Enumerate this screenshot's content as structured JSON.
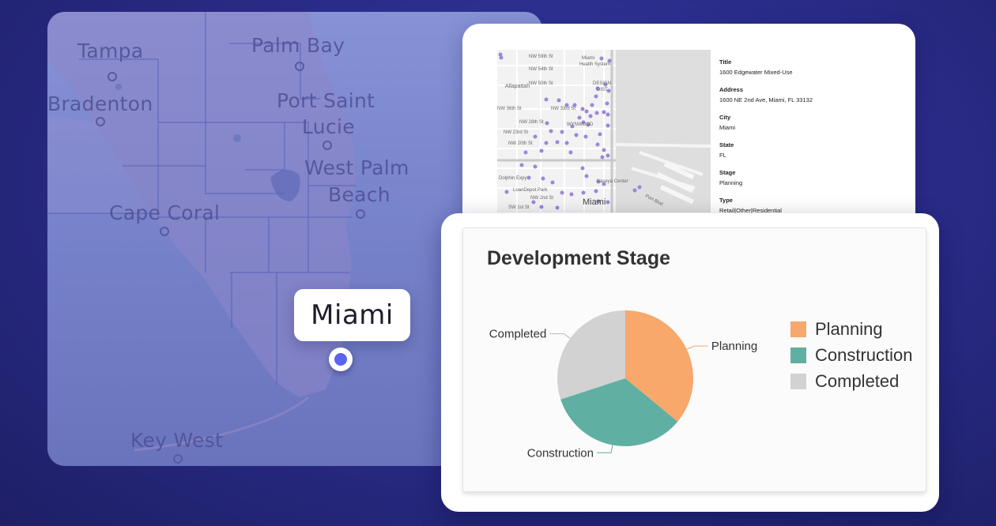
{
  "map": {
    "cities": [
      {
        "name": "Tampa"
      },
      {
        "name": "Palm Bay"
      },
      {
        "name": "Bradenton"
      },
      {
        "name": "Port Saint"
      },
      {
        "name": "Lucie"
      },
      {
        "name": "West Palm"
      },
      {
        "name": "Beach"
      },
      {
        "name": "Cape Coral"
      },
      {
        "name": "Key West"
      }
    ],
    "selected_city": "Miami",
    "marker_color": "#5b63f0"
  },
  "street_map": {
    "labels": [
      "NW 59th St",
      "NW 54th St",
      "NW 50th St",
      "Miami",
      "Health System",
      "Allapattah",
      "DESIGN",
      "DIST",
      "NW 36th St",
      "NW 33rd St",
      "NW 28th St",
      "NW 23rd St",
      "NW 20th St",
      "WYNWOOD",
      "Dolphin Expy",
      "LoanDepot Park",
      "Kaseya Center",
      "Port Blvd",
      "SW 1st St",
      "NW 2nd St",
      "Miami"
    ],
    "dot_color": "#9b87d8"
  },
  "details": {
    "fields": [
      {
        "label": "Title",
        "value": "1600 Edgewater Mixed-Use"
      },
      {
        "label": "Address",
        "value": "1600 NE 2nd Ave, Miami, FL 33132"
      },
      {
        "label": "City",
        "value": "Miami"
      },
      {
        "label": "State",
        "value": "FL"
      },
      {
        "label": "Stage",
        "value": "Planning"
      },
      {
        "label": "Type",
        "value": "Retail|Other|Residential"
      }
    ]
  },
  "chart_data": {
    "type": "pie",
    "title": "Development Stage",
    "categories": [
      "Planning",
      "Construction",
      "Completed"
    ],
    "values": [
      36,
      34,
      30
    ],
    "colors": [
      "#f7a86a",
      "#5fb0a2",
      "#d2d2d2"
    ],
    "legend": "right"
  }
}
